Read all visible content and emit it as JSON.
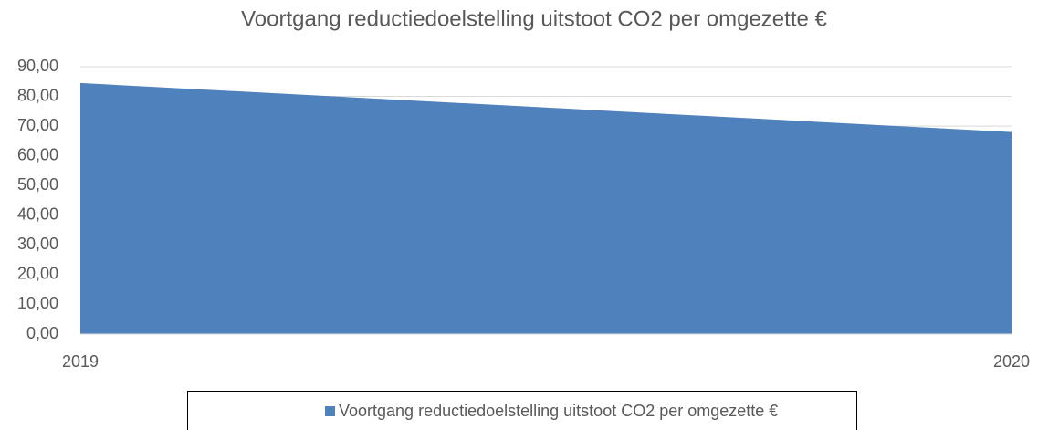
{
  "chart_data": {
    "type": "area",
    "title": "Voortgang reductiedoelstelling uitstoot CO2 per omgezette €",
    "categories": [
      "2019",
      "2020"
    ],
    "series": [
      {
        "name": "Voortgang reductiedoelstelling uitstoot CO2 per omgezette €",
        "color": "#4f81bd",
        "values": [
          84.5,
          68
        ]
      }
    ],
    "ylim": [
      0,
      90
    ],
    "yticks": [
      {
        "value": 0,
        "label": "0,00"
      },
      {
        "value": 10,
        "label": "10,00"
      },
      {
        "value": 20,
        "label": "20,00"
      },
      {
        "value": 30,
        "label": "30,00"
      },
      {
        "value": 40,
        "label": "40,00"
      },
      {
        "value": 50,
        "label": "50,00"
      },
      {
        "value": 60,
        "label": "60,00"
      },
      {
        "value": 70,
        "label": "70,00"
      },
      {
        "value": 80,
        "label": "80,00"
      },
      {
        "value": 90,
        "label": "90,00"
      }
    ],
    "grid": true,
    "legend": "bottom"
  }
}
